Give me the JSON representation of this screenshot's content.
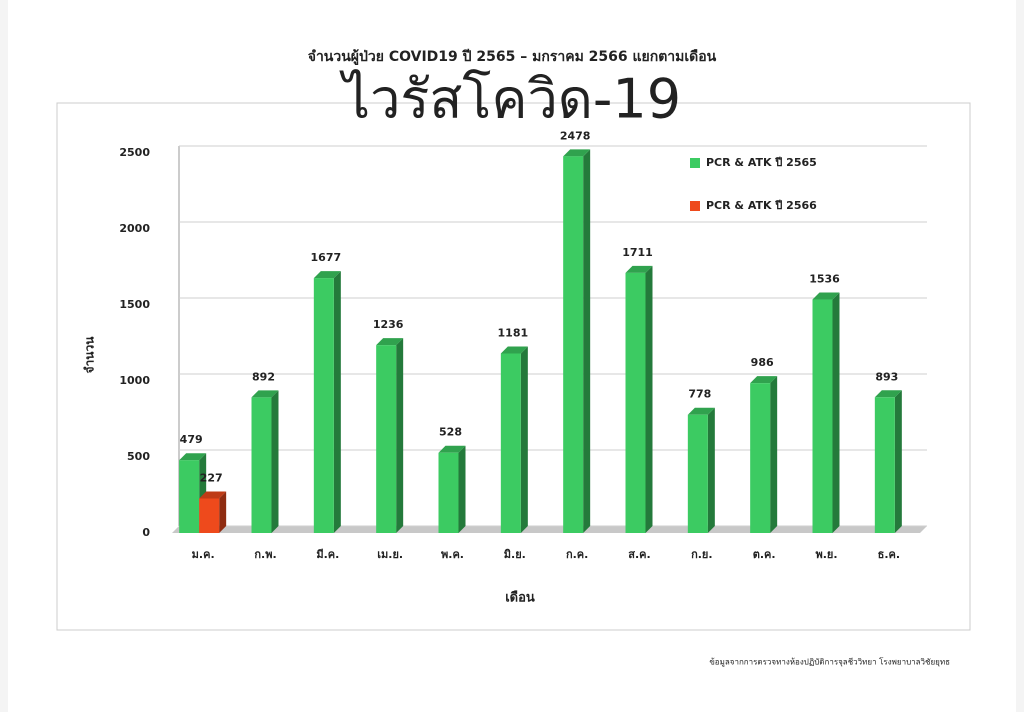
{
  "chart_data": {
    "type": "bar",
    "title": "จำนวนผู้ป่วย COVID19 ปี 2565 – มกราคม 2566 แยกตามเดือน",
    "subtitle": "ไวรัสโควิด-19",
    "y_label": "จำนวน",
    "x_label": "เดือน",
    "source": "ข้อมูลจากการตรวจทางห้องปฏิบัติการจุลชีววิทยา โรงพยาบาลวิชัยยุทธ",
    "categories": [
      "ม.ค.",
      "ก.พ.",
      "มี.ค.",
      "เม.ย.",
      "พ.ค.",
      "มิ.ย.",
      "ก.ค.",
      "ส.ค.",
      "ก.ย.",
      "ต.ค.",
      "พ.ย.",
      "ธ.ค."
    ],
    "series": [
      {
        "name": "PCR & ATK ปี 2565",
        "color": "#3ccb62",
        "values": [
          479,
          892,
          1677,
          1236,
          528,
          1181,
          2478,
          1711,
          778,
          986,
          1536,
          893
        ]
      },
      {
        "name": "PCR & ATK ปี 2566",
        "color": "#ee4a1c",
        "values": [
          227,
          null,
          null,
          null,
          null,
          null,
          null,
          null,
          null,
          null,
          null,
          null
        ]
      }
    ],
    "ylim": [
      0,
      2500
    ],
    "yticks": [
      0,
      500,
      1000,
      1500,
      2000,
      2500
    ],
    "grid": true
  }
}
